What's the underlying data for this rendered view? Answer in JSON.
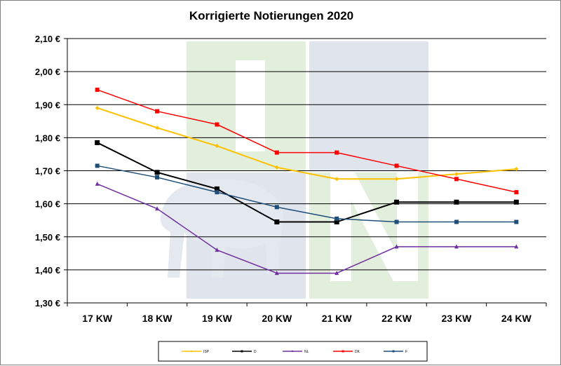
{
  "chart_data": {
    "type": "line",
    "title": "Korrigierte Notierungen 2020",
    "xlabel": "",
    "ylabel": "",
    "categories": [
      "17 KW",
      "18 KW",
      "19 KW",
      "20 KW",
      "21 KW",
      "22 KW",
      "23 KW",
      "24 KW"
    ],
    "y_ticks": [
      "1,30 €",
      "1,40 €",
      "1,50 €",
      "1,60 €",
      "1,70 €",
      "1,80 €",
      "1,90 €",
      "2,00 €",
      "2,10 €"
    ],
    "ylim": [
      1.3,
      2.1
    ],
    "grid": true,
    "legend_position": "bottom",
    "series": [
      {
        "name": "ISP",
        "color": "#ffc000",
        "marker": "diamond",
        "values": [
          1.89,
          1.83,
          1.775,
          1.71,
          1.675,
          1.675,
          1.69,
          1.705
        ]
      },
      {
        "name": "D",
        "color": "#000000",
        "marker": "square",
        "values": [
          1.785,
          1.695,
          1.645,
          1.545,
          1.545,
          1.605,
          1.605,
          1.605
        ]
      },
      {
        "name": "NL",
        "color": "#7030a0",
        "marker": "triangle",
        "values": [
          1.66,
          1.585,
          1.46,
          1.39,
          1.39,
          1.47,
          1.47,
          1.47
        ]
      },
      {
        "name": "DK",
        "color": "#ff0000",
        "marker": "square",
        "values": [
          1.945,
          1.88,
          1.84,
          1.755,
          1.755,
          1.715,
          1.675,
          1.635
        ]
      },
      {
        "name": "F",
        "color": "#1f4e79",
        "marker": "square",
        "values": [
          1.715,
          1.68,
          1.635,
          1.59,
          1.555,
          1.545,
          1.545,
          1.545
        ]
      }
    ]
  }
}
